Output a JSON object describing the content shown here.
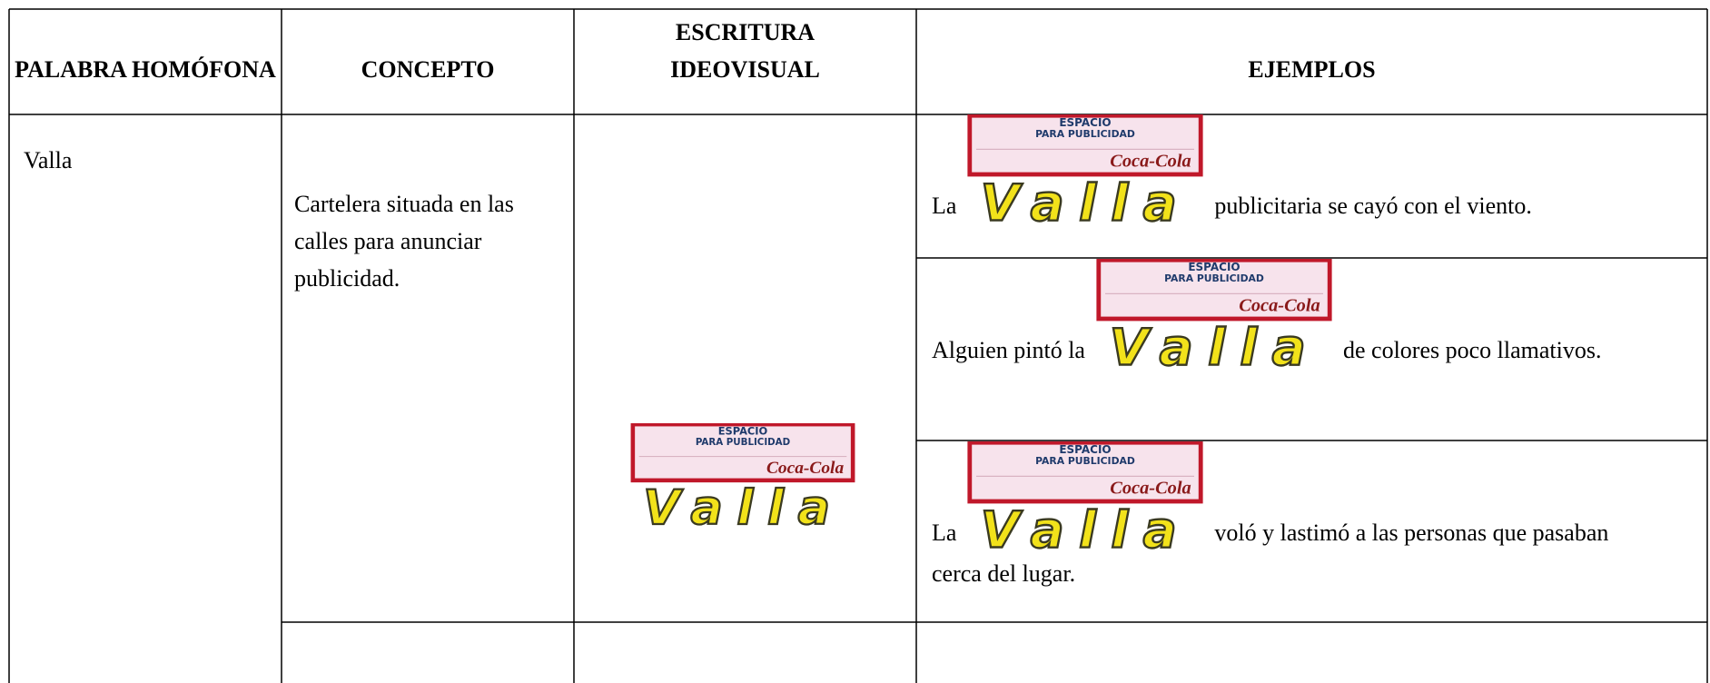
{
  "table": {
    "headers": [
      "PALABRA HOMÓFONA",
      "CONCEPTO",
      "ESCRITURA IDEOVISUAL",
      "EJEMPLOS"
    ],
    "rows": [
      {
        "word": "Valla",
        "concept": "Cartelera situada en las calles para anunciar publicidad.",
        "examples": [
          {
            "before": "La",
            "after": "publicitaria se cayó con el viento."
          },
          {
            "before": "Alguien pintó la",
            "after": "de colores poco llamativos."
          },
          {
            "before": "La",
            "after": "voló y lastimó a las personas que pasaban cerca del lugar."
          }
        ]
      }
    ]
  },
  "billboard": {
    "line1": "ESPACIO",
    "line2": "PARA PUBLICIDAD",
    "brand": "Coca-Cola",
    "word": "Valla"
  }
}
